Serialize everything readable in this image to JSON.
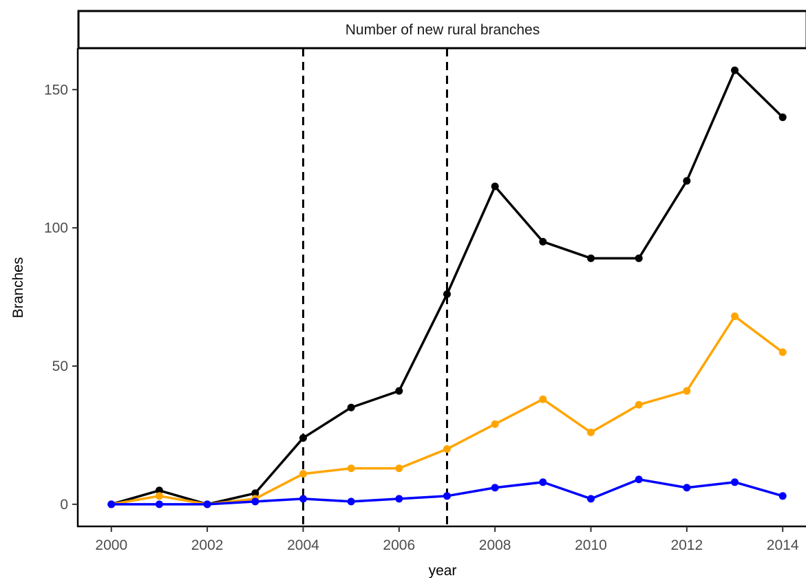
{
  "chart_data": {
    "type": "line",
    "title": "Number of new rural branches",
    "xlabel": "year",
    "ylabel": "Branches",
    "x": [
      2000,
      2001,
      2002,
      2003,
      2004,
      2005,
      2006,
      2007,
      2008,
      2009,
      2010,
      2011,
      2012,
      2013,
      2014
    ],
    "xlim": [
      1999.3,
      2014.5
    ],
    "ylim": [
      -8,
      165
    ],
    "x_ticks": [
      2000,
      2002,
      2004,
      2006,
      2008,
      2010,
      2012,
      2014
    ],
    "y_ticks": [
      0,
      50,
      100,
      150
    ],
    "x_tick_labels": [
      "2000",
      "2002",
      "2004",
      "2006",
      "2008",
      "2010",
      "2012",
      "2014"
    ],
    "y_tick_labels": [
      "0",
      "50",
      "100",
      "150"
    ],
    "vlines": [
      2004,
      2007
    ],
    "grid": false,
    "legend": "none",
    "series": [
      {
        "color": "#000000",
        "values": [
          0,
          5,
          0,
          4,
          24,
          35,
          41,
          76,
          115,
          95,
          89,
          89,
          117,
          157,
          140
        ]
      },
      {
        "color": "#FFA500",
        "values": [
          0,
          3,
          0,
          2,
          11,
          13,
          13,
          20,
          29,
          38,
          26,
          36,
          41,
          68,
          55
        ]
      },
      {
        "color": "#0000FF",
        "values": [
          0,
          0,
          0,
          1,
          2,
          1,
          2,
          3,
          6,
          8,
          2,
          9,
          6,
          8,
          3
        ]
      }
    ]
  }
}
